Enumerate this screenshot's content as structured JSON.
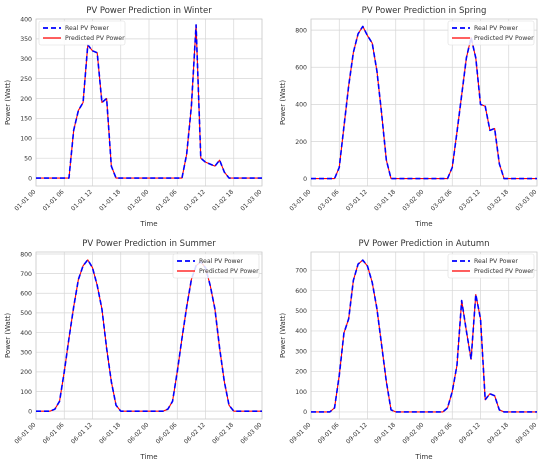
{
  "chart_data": [
    {
      "type": "line",
      "title": "PV Power Prediction in Winter",
      "xlabel": "Time",
      "ylabel": "Power (Watt)",
      "ylim": [
        -20,
        400
      ],
      "yticks": [
        0,
        50,
        100,
        150,
        200,
        250,
        300,
        350,
        400
      ],
      "xlim": [
        "01-01 00",
        "01-03 00"
      ],
      "xticks": [
        "01-01 00",
        "01-01 06",
        "01-01 12",
        "01-01 18",
        "01-02 00",
        "01-02 06",
        "01-02 12",
        "01-02 18",
        "01-03 00"
      ],
      "grid": true,
      "legend": "top-left",
      "x_step_hours": 1,
      "series": [
        {
          "name": "Real PV Power",
          "color": "#0000ff",
          "style": "dashed",
          "values": [
            0,
            0,
            0,
            0,
            0,
            0,
            0,
            0,
            120,
            170,
            190,
            335,
            320,
            315,
            190,
            200,
            30,
            0,
            0,
            0,
            0,
            0,
            0,
            0,
            0,
            0,
            0,
            0,
            0,
            0,
            0,
            0,
            60,
            180,
            385,
            50,
            40,
            35,
            30,
            45,
            15,
            0,
            0,
            0,
            0,
            0,
            0,
            0,
            0
          ]
        },
        {
          "name": "Predicted PV Power",
          "color": "#ff0000",
          "style": "solid",
          "values": [
            0,
            0,
            0,
            0,
            0,
            0,
            0,
            0,
            120,
            170,
            190,
            335,
            320,
            315,
            190,
            200,
            30,
            0,
            0,
            0,
            0,
            0,
            0,
            0,
            0,
            0,
            0,
            0,
            0,
            0,
            0,
            0,
            60,
            180,
            385,
            50,
            40,
            35,
            30,
            45,
            15,
            0,
            0,
            0,
            0,
            0,
            0,
            0,
            0
          ]
        }
      ]
    },
    {
      "type": "line",
      "title": "PV Power Prediction in Spring",
      "xlabel": "Time",
      "ylabel": "Power (Watt)",
      "ylim": [
        -40,
        860
      ],
      "yticks": [
        0,
        200,
        400,
        600,
        800
      ],
      "xlim": [
        "03-01 00",
        "03-03 00"
      ],
      "xticks": [
        "03-01 00",
        "03-01 06",
        "03-01 12",
        "03-01 18",
        "03-02 00",
        "03-02 06",
        "03-02 12",
        "03-02 18",
        "03-03 00"
      ],
      "grid": true,
      "legend": "top-right",
      "x_step_hours": 1,
      "series": [
        {
          "name": "Real PV Power",
          "color": "#0000ff",
          "style": "dashed",
          "values": [
            0,
            0,
            0,
            0,
            0,
            0,
            60,
            280,
            500,
            680,
            780,
            820,
            770,
            730,
            580,
            350,
            100,
            0,
            0,
            0,
            0,
            0,
            0,
            0,
            0,
            0,
            0,
            0,
            0,
            0,
            60,
            250,
            450,
            650,
            760,
            650,
            400,
            390,
            260,
            270,
            80,
            0,
            0,
            0,
            0,
            0,
            0,
            0,
            0
          ]
        },
        {
          "name": "Predicted PV Power",
          "color": "#ff0000",
          "style": "solid",
          "values": [
            0,
            0,
            0,
            0,
            0,
            0,
            60,
            280,
            500,
            680,
            780,
            820,
            770,
            730,
            580,
            350,
            100,
            0,
            0,
            0,
            0,
            0,
            0,
            0,
            0,
            0,
            0,
            0,
            0,
            0,
            60,
            250,
            450,
            650,
            760,
            650,
            400,
            390,
            260,
            270,
            80,
            0,
            0,
            0,
            0,
            0,
            0,
            0,
            0
          ]
        }
      ]
    },
    {
      "type": "line",
      "title": "PV Power Prediction in Summer",
      "xlabel": "Time",
      "ylabel": "Power (Watt)",
      "ylim": [
        -40,
        810
      ],
      "yticks": [
        0,
        100,
        200,
        300,
        400,
        500,
        600,
        700,
        800
      ],
      "xlim": [
        "06-01 00",
        "06-03 00"
      ],
      "xticks": [
        "06-01 00",
        "06-01 06",
        "06-01 12",
        "06-01 18",
        "06-02 00",
        "06-02 06",
        "06-02 12",
        "06-02 18",
        "06-03 00"
      ],
      "grid": true,
      "legend": "top-right",
      "x_step_hours": 1,
      "series": [
        {
          "name": "Real PV Power",
          "color": "#0000ff",
          "style": "dashed",
          "values": [
            0,
            0,
            0,
            0,
            10,
            50,
            200,
            370,
            530,
            670,
            740,
            770,
            730,
            640,
            520,
            320,
            150,
            30,
            0,
            0,
            0,
            0,
            0,
            0,
            0,
            0,
            0,
            0,
            10,
            50,
            200,
            370,
            530,
            670,
            740,
            760,
            730,
            640,
            520,
            320,
            150,
            30,
            0,
            0,
            0,
            0,
            0,
            0,
            0
          ]
        },
        {
          "name": "Predicted PV Power",
          "color": "#ff0000",
          "style": "solid",
          "values": [
            0,
            0,
            0,
            0,
            10,
            50,
            200,
            370,
            530,
            670,
            740,
            770,
            730,
            640,
            520,
            320,
            150,
            30,
            0,
            0,
            0,
            0,
            0,
            0,
            0,
            0,
            0,
            0,
            10,
            50,
            200,
            370,
            530,
            670,
            740,
            760,
            730,
            640,
            520,
            320,
            150,
            30,
            0,
            0,
            0,
            0,
            0,
            0,
            0
          ]
        }
      ]
    },
    {
      "type": "line",
      "title": "PV Power Prediction in Autumn",
      "xlabel": "Time",
      "ylabel": "Power (Watt)",
      "ylim": [
        -35,
        790
      ],
      "yticks": [
        0,
        100,
        200,
        300,
        400,
        500,
        600,
        700
      ],
      "xlim": [
        "09-01 00",
        "09-03 00"
      ],
      "xticks": [
        "09-01 00",
        "09-01 06",
        "09-01 12",
        "09-01 18",
        "09-02 00",
        "09-02 06",
        "09-02 12",
        "09-02 18",
        "09-03 00"
      ],
      "grid": true,
      "legend": "top-right",
      "x_step_hours": 1,
      "series": [
        {
          "name": "Real PV Power",
          "color": "#0000ff",
          "style": "dashed",
          "values": [
            0,
            0,
            0,
            0,
            0,
            20,
            180,
            390,
            460,
            650,
            730,
            750,
            720,
            640,
            510,
            330,
            150,
            10,
            0,
            0,
            0,
            0,
            0,
            0,
            0,
            0,
            0,
            0,
            0,
            20,
            100,
            230,
            550,
            400,
            260,
            580,
            460,
            60,
            90,
            80,
            10,
            0,
            0,
            0,
            0,
            0,
            0,
            0,
            0
          ]
        },
        {
          "name": "Predicted PV Power",
          "color": "#ff0000",
          "style": "solid",
          "values": [
            0,
            0,
            0,
            0,
            0,
            20,
            180,
            390,
            460,
            650,
            730,
            750,
            720,
            640,
            510,
            330,
            150,
            10,
            0,
            0,
            0,
            0,
            0,
            0,
            0,
            0,
            0,
            0,
            0,
            20,
            100,
            230,
            550,
            400,
            260,
            580,
            460,
            60,
            90,
            80,
            10,
            0,
            0,
            0,
            0,
            0,
            0,
            0,
            0
          ]
        }
      ]
    }
  ]
}
